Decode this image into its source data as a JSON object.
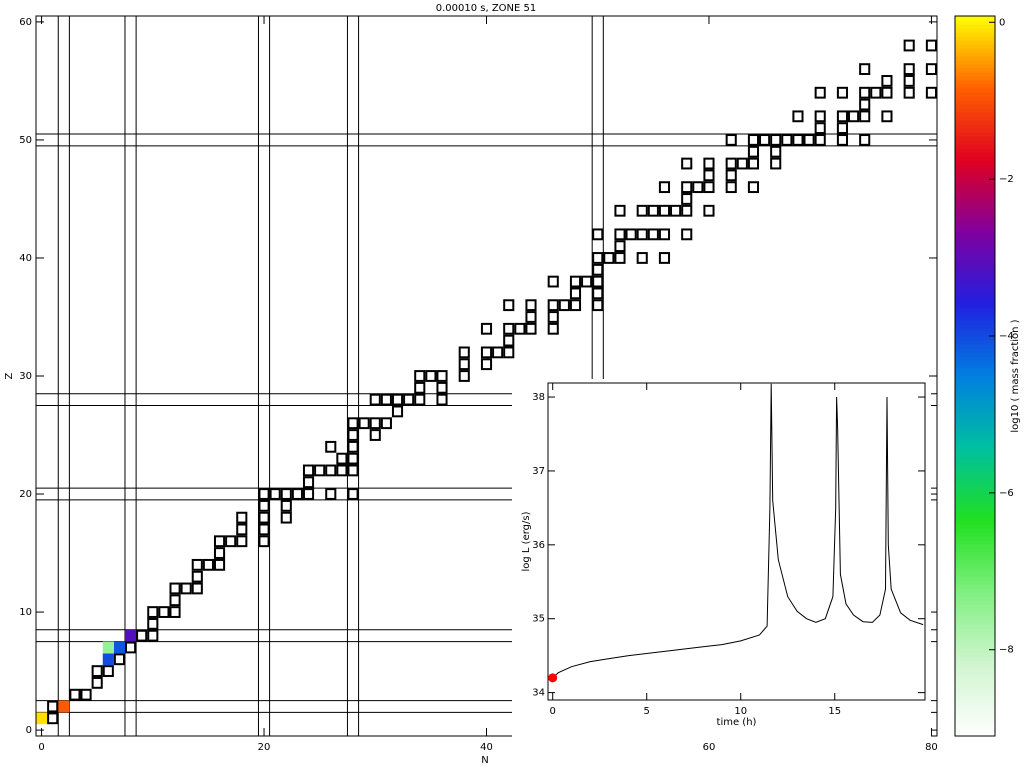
{
  "chart_data": [
    {
      "type": "scatter",
      "title": "0.00010 s, ZONE 51",
      "x_label": "N",
      "y_label": "Z",
      "xlim": [
        -0.5,
        80.5
      ],
      "ylim": [
        -0.5,
        60.5
      ],
      "xticks": [
        0,
        20,
        40,
        60,
        80
      ],
      "yticks": [
        0,
        10,
        20,
        30,
        40,
        50,
        60
      ],
      "magic_numbers": [
        2,
        8,
        20,
        28,
        50
      ],
      "box_color": "#000000",
      "nuclides": [
        {
          "Z": 1,
          "N": [
            0,
            1
          ]
        },
        {
          "Z": 2,
          "N": [
            1,
            2
          ]
        },
        {
          "Z": 3,
          "N": [
            3,
            4
          ]
        },
        {
          "Z": 4,
          "N": [
            5
          ]
        },
        {
          "Z": 5,
          "N": [
            5,
            6
          ]
        },
        {
          "Z": 6,
          "N": [
            6,
            7
          ]
        },
        {
          "Z": 7,
          "N": [
            6,
            7,
            8
          ]
        },
        {
          "Z": 8,
          "N": [
            8,
            9,
            10
          ]
        },
        {
          "Z": 9,
          "N": [
            10
          ]
        },
        {
          "Z": 10,
          "N": [
            10,
            11,
            12
          ]
        },
        {
          "Z": 11,
          "N": [
            12
          ]
        },
        {
          "Z": 12,
          "N": [
            12,
            13,
            14
          ]
        },
        {
          "Z": 13,
          "N": [
            14
          ]
        },
        {
          "Z": 14,
          "N": [
            14,
            15,
            16
          ]
        },
        {
          "Z": 15,
          "N": [
            16
          ]
        },
        {
          "Z": 16,
          "N": [
            16,
            17,
            18,
            20
          ]
        },
        {
          "Z": 17,
          "N": [
            18,
            20
          ]
        },
        {
          "Z": 18,
          "N": [
            18,
            20,
            22
          ]
        },
        {
          "Z": 19,
          "N": [
            20,
            22
          ]
        },
        {
          "Z": 20,
          "N": [
            20,
            21,
            22,
            23,
            24,
            26,
            28
          ]
        },
        {
          "Z": 21,
          "N": [
            24
          ]
        },
        {
          "Z": 22,
          "N": [
            24,
            25,
            26,
            27,
            28
          ]
        },
        {
          "Z": 23,
          "N": [
            27,
            28
          ]
        },
        {
          "Z": 24,
          "N": [
            26,
            28
          ]
        },
        {
          "Z": 25,
          "N": [
            28,
            30
          ]
        },
        {
          "Z": 26,
          "N": [
            28,
            29,
            30,
            31
          ]
        },
        {
          "Z": 27,
          "N": [
            32
          ]
        },
        {
          "Z": 28,
          "N": [
            30,
            31,
            32,
            33,
            34,
            36
          ]
        },
        {
          "Z": 29,
          "N": [
            34,
            36
          ]
        },
        {
          "Z": 30,
          "N": [
            34,
            35,
            36,
            38
          ]
        },
        {
          "Z": 31,
          "N": [
            38,
            40
          ]
        },
        {
          "Z": 32,
          "N": [
            38,
            40,
            41,
            42
          ]
        },
        {
          "Z": 33,
          "N": [
            42
          ]
        },
        {
          "Z": 34,
          "N": [
            40,
            42,
            43,
            44,
            46
          ]
        },
        {
          "Z": 35,
          "N": [
            44,
            46
          ]
        },
        {
          "Z": 36,
          "N": [
            42,
            44,
            46,
            47,
            48,
            50
          ]
        },
        {
          "Z": 37,
          "N": [
            48,
            50
          ]
        },
        {
          "Z": 38,
          "N": [
            46,
            48,
            49,
            50
          ]
        },
        {
          "Z": 39,
          "N": [
            50
          ]
        },
        {
          "Z": 40,
          "N": [
            50,
            51,
            52,
            54,
            56
          ]
        },
        {
          "Z": 41,
          "N": [
            52
          ]
        },
        {
          "Z": 42,
          "N": [
            50,
            52,
            53,
            54,
            55,
            56,
            58
          ]
        },
        {
          "Z": 44,
          "N": [
            52,
            54,
            55,
            56,
            57,
            58,
            60
          ]
        },
        {
          "Z": 45,
          "N": [
            58
          ]
        },
        {
          "Z": 46,
          "N": [
            56,
            58,
            59,
            60,
            62,
            64
          ]
        },
        {
          "Z": 47,
          "N": [
            60,
            62
          ]
        },
        {
          "Z": 48,
          "N": [
            58,
            60,
            62,
            63,
            64,
            66
          ]
        },
        {
          "Z": 49,
          "N": [
            64,
            66
          ]
        },
        {
          "Z": 50,
          "N": [
            62,
            64,
            65,
            66,
            67,
            68,
            69,
            70,
            72,
            74
          ]
        },
        {
          "Z": 51,
          "N": [
            70,
            72
          ]
        },
        {
          "Z": 52,
          "N": [
            68,
            70,
            72,
            73,
            74,
            76
          ]
        },
        {
          "Z": 53,
          "N": [
            74
          ]
        },
        {
          "Z": 54,
          "N": [
            70,
            72,
            74,
            75,
            76,
            78,
            80
          ]
        },
        {
          "Z": 55,
          "N": [
            76,
            78
          ]
        },
        {
          "Z": 56,
          "N": [
            74,
            78,
            80
          ]
        },
        {
          "Z": 58,
          "N": [
            78,
            80
          ]
        }
      ],
      "colored": [
        {
          "N": 0,
          "Z": 1,
          "value": -0.1
        },
        {
          "N": 2,
          "Z": 2,
          "value": -0.9
        },
        {
          "N": 6,
          "Z": 6,
          "value": -4.0
        },
        {
          "N": 7,
          "Z": 7,
          "value": -4.1
        },
        {
          "N": 8,
          "Z": 8,
          "value": -3.1
        },
        {
          "N": 6,
          "Z": 7,
          "value": -7.5
        }
      ],
      "colorbar_label": "log10 ( mass fraction )",
      "zlim": [
        -9.1,
        0.08
      ],
      "zticks": [
        0,
        {
          "value": -2,
          "label": "−2"
        },
        {
          "value": -4,
          "label": "−4"
        },
        {
          "value": -6,
          "label": "−6"
        },
        {
          "value": -8,
          "label": "−8"
        }
      ],
      "colormap": [
        "#ffffff",
        "#d0f5d0",
        "#80f080",
        "#20e020",
        "#00c0a0",
        "#0080e0",
        "#2020e0",
        "#8000a0",
        "#e00020",
        "#ff6000",
        "#ffff00"
      ]
    },
    {
      "type": "line",
      "x_label": "time (h)",
      "y_label": "log L (erg/s)",
      "xlim": [
        -0.25,
        19.8
      ],
      "ylim": [
        33.9,
        38.19
      ],
      "xticks": [
        0,
        5,
        10,
        15
      ],
      "yticks": [
        34,
        35,
        36,
        37,
        38
      ],
      "color": "#000000",
      "marker": {
        "x": 0,
        "y": 34.2,
        "color": "#ff0000"
      },
      "x": [
        0,
        0.3,
        1,
        2,
        3,
        4,
        6,
        8,
        9,
        10,
        11,
        11.4,
        11.55,
        11.62,
        11.7,
        12,
        12.5,
        13,
        13.5,
        14,
        14.5,
        14.9,
        15.05,
        15.1,
        15.15,
        15.3,
        15.6,
        16,
        16.5,
        17,
        17.4,
        17.7,
        17.78,
        17.85,
        18,
        18.5,
        19,
        19.7
      ],
      "y": [
        34.2,
        34.27,
        34.35,
        34.42,
        34.46,
        34.5,
        34.56,
        34.62,
        34.65,
        34.7,
        34.78,
        34.9,
        36.5,
        38.18,
        36.6,
        35.8,
        35.3,
        35.1,
        35.0,
        34.95,
        35.0,
        35.3,
        36.5,
        38.0,
        37.6,
        35.6,
        35.2,
        35.05,
        34.96,
        34.95,
        35.05,
        35.4,
        38.0,
        36.0,
        35.4,
        35.08,
        34.98,
        34.92
      ]
    }
  ]
}
